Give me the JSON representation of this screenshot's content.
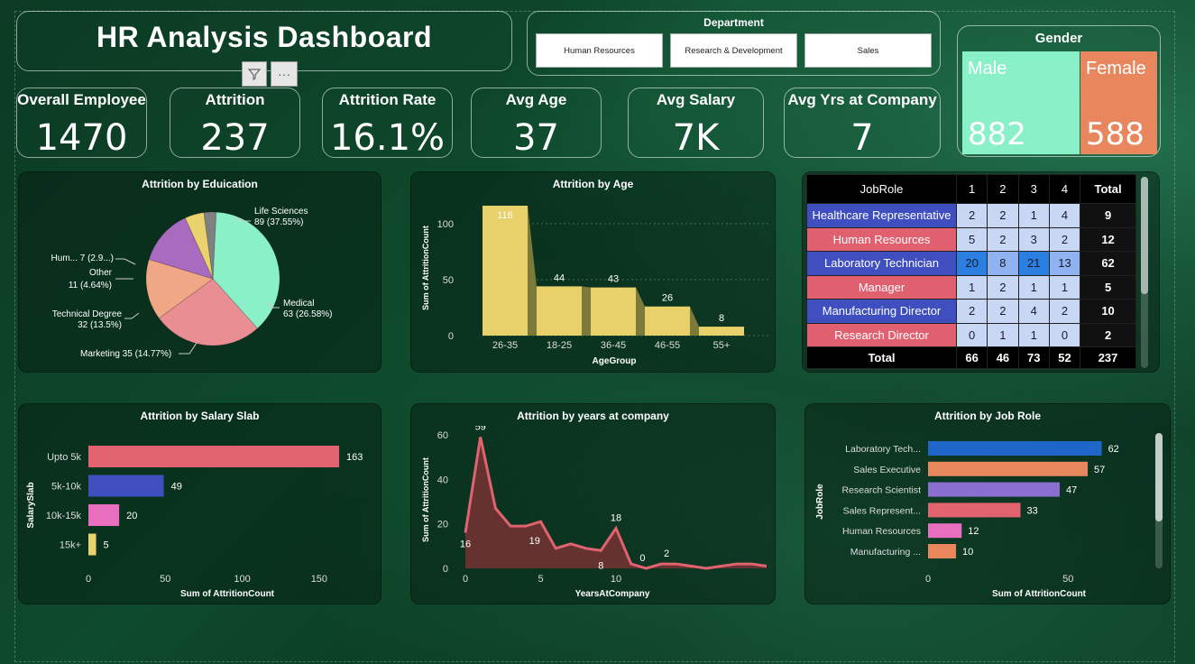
{
  "header": {
    "title": "HR Analysis Dashboard"
  },
  "toolbar": {
    "filter_icon": "filter-icon",
    "more_icon": "more-options-icon"
  },
  "department": {
    "label": "Department",
    "options": [
      "Human Resources",
      "Research & Development",
      "Sales"
    ]
  },
  "gender": {
    "label": "Gender",
    "male_label": "Male",
    "male_value": "882",
    "male_color": "#8af0c8",
    "female_label": "Female",
    "female_value": "588",
    "female_color": "#e8875e"
  },
  "kpis": [
    {
      "label": "Overall Employee",
      "value": "1470"
    },
    {
      "label": "Attrition",
      "value": "237"
    },
    {
      "label": "Attrition Rate",
      "value": "16.1%"
    },
    {
      "label": "Avg Age",
      "value": "37"
    },
    {
      "label": "Avg Salary",
      "value": "7K"
    },
    {
      "label": "Avg Yrs at Company",
      "value": "7"
    }
  ],
  "matrix": {
    "headers": [
      "JobRole",
      "1",
      "2",
      "3",
      "4",
      "Total"
    ],
    "rows": [
      {
        "role": "Healthcare Representative",
        "vals": [
          "2",
          "2",
          "1",
          "4"
        ],
        "total": "9"
      },
      {
        "role": "Human Resources",
        "vals": [
          "5",
          "2",
          "3",
          "2"
        ],
        "total": "12"
      },
      {
        "role": "Laboratory Technician",
        "vals": [
          "20",
          "8",
          "21",
          "13"
        ],
        "total": "62"
      },
      {
        "role": "Manager",
        "vals": [
          "1",
          "2",
          "1",
          "1"
        ],
        "total": "5"
      },
      {
        "role": "Manufacturing Director",
        "vals": [
          "2",
          "2",
          "4",
          "2"
        ],
        "total": "10"
      },
      {
        "role": "Research Director",
        "vals": [
          "0",
          "1",
          "1",
          "0"
        ],
        "total": "2"
      }
    ],
    "total_row": {
      "label": "Total",
      "vals": [
        "66",
        "46",
        "73",
        "52"
      ],
      "total": "237"
    },
    "row_colors": [
      "#3f4fc0",
      "#e06070",
      "#3f4fc0",
      "#e06070",
      "#3f4fc0",
      "#e06070"
    ],
    "cell_light": "#c8d8f4",
    "cell_mid": "#8fb3f0",
    "cell_dark": "#2b7fe0"
  },
  "chart_data": [
    {
      "type": "pie",
      "title": "Attrition by Eduication",
      "categories": [
        "Life Sciences",
        "Medical",
        "Marketing",
        "Technical Degree",
        "Other",
        "Human Resources"
      ],
      "values": [
        89,
        63,
        35,
        32,
        11,
        7
      ],
      "labels": [
        "Life Sciences",
        "89 (37.55%)",
        "Medical",
        "63 (26.58%)",
        "Marketing 35 (14.77%)",
        "Technical Degree",
        "32 (13.5%)",
        "Other",
        "11 (4.64%)",
        "Hum... 7 (2.9...)"
      ],
      "colors": [
        "#8af0c8",
        "#e98f94",
        "#f0a785",
        "#a86bc0",
        "#ead36e",
        "#808080"
      ]
    },
    {
      "type": "bar",
      "title": "Attrition by Age",
      "categories": [
        "26-35",
        "18-25",
        "36-45",
        "46-55",
        "55+"
      ],
      "values": [
        116,
        44,
        43,
        26,
        8
      ],
      "xlabel": "AgeGroup",
      "ylabel": "Sum of AttritionCount",
      "yticks": [
        "0",
        "50",
        "100"
      ],
      "ylim": [
        0,
        116
      ],
      "color": "#e8d06a"
    },
    {
      "type": "bar",
      "title": "Attrition by Salary Slab",
      "categories": [
        "Upto 5k",
        "5k-10k",
        "10k-15k",
        "15k+"
      ],
      "values": [
        163,
        49,
        20,
        5
      ],
      "xlabel": "Sum of AttritionCount",
      "ylabel": "SalarySlab",
      "xticks": [
        "0",
        "50",
        "100",
        "150"
      ],
      "xlim": [
        0,
        170
      ],
      "colors": [
        "#e0636f",
        "#3f4fc0",
        "#e86fc0",
        "#ead36e"
      ]
    },
    {
      "type": "area",
      "title": "Attrition by years at company",
      "x": [
        0,
        1,
        2,
        3,
        4,
        5,
        6,
        7,
        8,
        9,
        10,
        11,
        12,
        13,
        14,
        15,
        16,
        17,
        18,
        19,
        20
      ],
      "values": [
        16,
        59,
        27,
        19,
        19,
        21,
        9,
        11,
        9,
        8,
        18,
        2,
        0,
        2,
        2,
        1,
        0,
        1,
        2,
        2,
        1
      ],
      "point_labels": [
        [
          0,
          "16"
        ],
        [
          1,
          "59"
        ],
        [
          4,
          "19"
        ],
        [
          9,
          "8"
        ],
        [
          10,
          "18"
        ],
        [
          12,
          "0"
        ],
        [
          13,
          "2"
        ]
      ],
      "xlabel": "YearsAtCompany",
      "ylabel": "Sum of AttritionCount",
      "xticks": [
        "0",
        "5",
        "10"
      ],
      "yticks": [
        "0",
        "20",
        "40",
        "60"
      ],
      "ylim": [
        0,
        60
      ],
      "color": "#e0636f"
    },
    {
      "type": "bar",
      "title": "Attrition by Job Role",
      "categories": [
        "Laboratory Tech...",
        "Sales Executive",
        "Research Scientist",
        "Sales Represent...",
        "Human Resources",
        "Manufacturing ..."
      ],
      "values": [
        62,
        57,
        47,
        33,
        12,
        10
      ],
      "xlabel": "Sum of AttritionCount",
      "ylabel": "JobRole",
      "xticks": [
        "0",
        "50"
      ],
      "xlim": [
        0,
        66
      ],
      "colors": [
        "#1f66c8",
        "#e8875e",
        "#8a6fd0",
        "#e0636f",
        "#e86fc0",
        "#e8875e"
      ]
    }
  ]
}
